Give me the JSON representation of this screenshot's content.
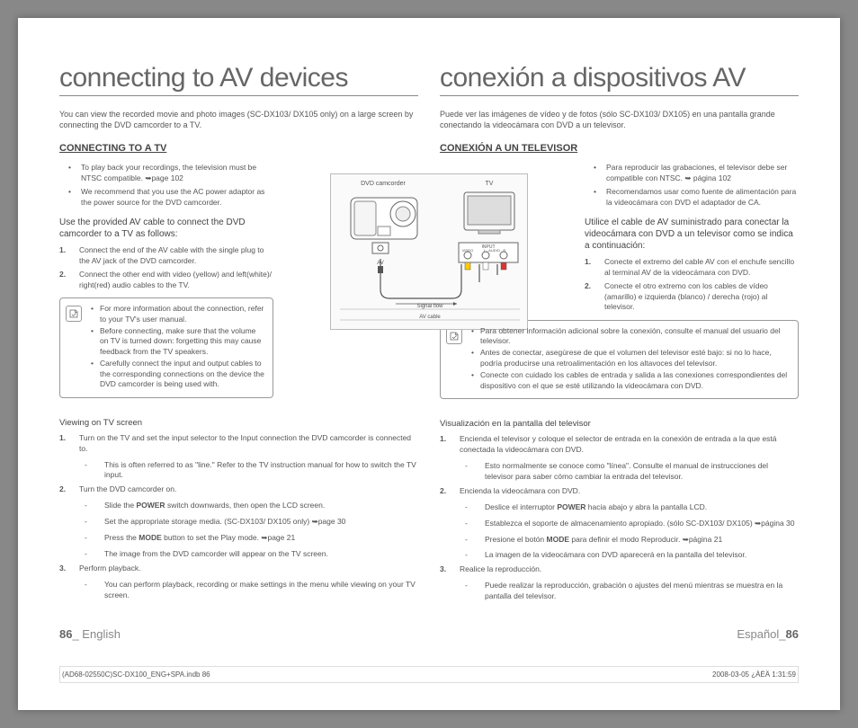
{
  "diagram": {
    "label_camcorder": "DVD camcorder",
    "label_tv": "TV",
    "label_av": "AV",
    "label_input": "INPUT",
    "label_video": "VIDEO",
    "label_laudio": "L - AUDIO - R",
    "label_signal": "Signal flow",
    "label_cable": "AV cable"
  },
  "en": {
    "title": "connecting to AV devices",
    "intro": "You can view the recorded movie and photo images (SC-DX103/ DX105 only) on a large screen by connecting the DVD camcorder to a TV.",
    "h2": "CONNECTING TO A TV",
    "bullets1": [
      "To play back your recordings, the television must be NTSC compatible. ➥page 102",
      "We recommend that you use the AC power adaptor as the power source for the DVD camcorder."
    ],
    "h3": "Use the provided AV cable to connect the DVD camcorder to a TV as follows:",
    "steps1": [
      "Connect the end of the AV cable with the single plug to the AV jack of the DVD camcorder.",
      "Connect the other end with video (yellow) and left(white)/ right(red) audio cables to the TV."
    ],
    "notes": [
      "For more information about the connection, refer to your TV's user manual.",
      "Before connecting, make sure that the volume on TV is turned down: forgetting this may cause feedback from the TV speakers.",
      "Carefully connect the input and output cables to the corresponding connections on the device the DVD camcorder is being used with."
    ],
    "subh": "Viewing on TV screen",
    "steps2": [
      {
        "main": "Turn on the TV and set the input selector to the Input connection the DVD camcorder is connected to.",
        "dashes": [
          "This is often referred to as \"line.\" Refer to the TV instruction manual for how to switch the TV input."
        ]
      },
      {
        "main": "Turn the DVD camcorder on.",
        "dashes": [
          "Slide the <b>POWER</b> switch downwards, then open the LCD screen.",
          "Set the appropriate storage media. (SC-DX103/ DX105 only) ➥page 30",
          "Press the <b>MODE</b> button to set the Play mode. ➥page 21",
          "The image from the DVD camcorder will appear on the TV screen."
        ]
      },
      {
        "main": "Perform playback.",
        "dashes": [
          "You can perform playback, recording or make settings in the menu while viewing on your TV screen."
        ]
      }
    ],
    "footer_page": "86",
    "footer_lang": "_ English"
  },
  "es": {
    "title": "conexión a dispositivos AV",
    "intro": "Puede ver las imágenes de vídeo y de fotos (sólo SC-DX103/ DX105) en una pantalla grande conectando la videocámara con DVD a un televisor.",
    "h2": "CONEXIÓN A UN TELEVISOR",
    "bullets1": [
      "Para reproducir las grabaciones, el televisor debe ser compatible con NTSC. ➥ página 102",
      "Recomendamos usar como fuente de alimentación para la videocámara con DVD el adaptador de CA."
    ],
    "h3": "Utilice el cable de AV suministrado para conectar la videocámara con DVD a un televisor como se indica a continuación:",
    "steps1": [
      "Conecte el extremo del cable AV con el enchufe sencillo al terminal AV de la videocámara con DVD.",
      "Conecte el otro extremo con los cables de vídeo (amarillo) e izquierda (blanco) / derecha (rojo) al televisor."
    ],
    "notes": [
      "Para obtener información adicional sobre la conexión, consulte el manual del usuario del televisor.",
      "Antes de conectar, asegúrese de que el volumen del televisor esté bajo: si no lo hace, podría producirse una retroalimentación en los altavoces del televisor.",
      "Conecte con cuidado los cables de entrada y salida a las conexiones correspondientes del dispositivo con el que se esté utilizando la videocámara con DVD."
    ],
    "subh": "Visualización en la pantalla del televisor",
    "steps2": [
      {
        "main": "Encienda el televisor y coloque el selector de entrada en la conexión de entrada a la que está conectada la videocámara con DVD.",
        "dashes": [
          "Esto normalmente se conoce como \"línea\". Consulte el manual de instrucciones del televisor para saber cómo cambiar la entrada del televisor."
        ]
      },
      {
        "main": "Encienda la videocámara con DVD.",
        "dashes": [
          "Deslice el interruptor <b>POWER</b> hacia abajo y abra la pantalla LCD.",
          "Establezca el soporte de almacenamiento apropiado. (sólo SC-DX103/ DX105) ➥página 30",
          "Presione el botón <b>MODE</b> para definir el modo Reproducir. ➥página 21",
          "La imagen de la videocámara con DVD aparecerá en la pantalla del televisor."
        ]
      },
      {
        "main": "Realice la reproducción.",
        "dashes": [
          "Puede realizar la reproducción, grabación o ajustes del menú mientras se muestra en la pantalla del televisor."
        ]
      }
    ],
    "footer_page": "86",
    "footer_lang": "Español_"
  },
  "printline": {
    "left": "(AD68-02550C)SC-DX100_ENG+SPA.indb   86",
    "right": "2008-03-05   ¿ÀÈÄ 1:31:59"
  }
}
